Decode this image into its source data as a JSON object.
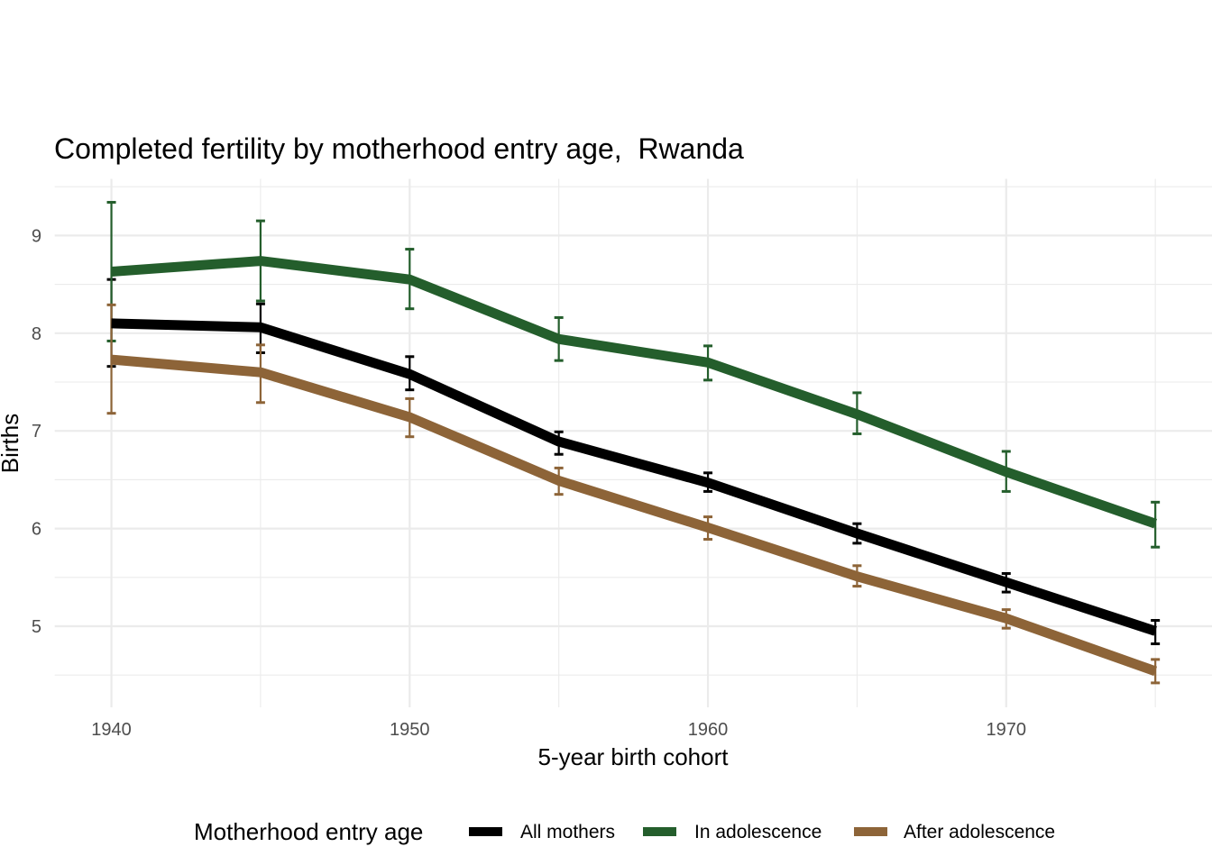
{
  "chart_data": {
    "type": "line",
    "title": "Completed fertility by motherhood entry age,  Rwanda",
    "xlabel": "5-year birth cohort",
    "ylabel": "Births",
    "x": [
      1940,
      1945,
      1950,
      1955,
      1960,
      1965,
      1970,
      1975
    ],
    "x_ticks": [
      1940,
      1950,
      1960,
      1970
    ],
    "x_tick_labels": [
      "1940",
      "1950",
      "1960",
      "1970"
    ],
    "y_ticks": [
      5,
      6,
      7,
      8,
      9
    ],
    "y_tick_labels": [
      "5",
      "6",
      "7",
      "8",
      "9"
    ],
    "xlim": [
      1938.1,
      1976.9
    ],
    "ylim": [
      4.17,
      9.58
    ],
    "grid": true,
    "error_bars": true,
    "legend": {
      "title": "Motherhood entry age",
      "position": "bottom"
    },
    "series": [
      {
        "name": "All mothers",
        "color": "#000000",
        "values": [
          8.1,
          8.06,
          7.58,
          6.89,
          6.47,
          5.95,
          5.45,
          4.95
        ],
        "lower": [
          7.66,
          7.8,
          7.42,
          6.76,
          6.38,
          5.85,
          5.35,
          4.82
        ],
        "upper": [
          8.55,
          8.3,
          7.76,
          6.99,
          6.57,
          6.05,
          5.54,
          5.06
        ]
      },
      {
        "name": "In adolescence",
        "color": "#245e2c",
        "values": [
          8.63,
          8.74,
          8.55,
          7.94,
          7.7,
          7.17,
          6.58,
          6.05
        ],
        "lower": [
          7.92,
          8.33,
          8.25,
          7.72,
          7.52,
          6.97,
          6.38,
          5.81
        ],
        "upper": [
          9.34,
          9.15,
          8.86,
          8.16,
          7.87,
          7.39,
          6.79,
          6.27
        ]
      },
      {
        "name": "After adolescence",
        "color": "#8d6438",
        "values": [
          7.73,
          7.6,
          7.14,
          6.49,
          6.01,
          5.51,
          5.08,
          4.54
        ],
        "lower": [
          7.18,
          7.29,
          6.94,
          6.35,
          5.89,
          5.41,
          4.98,
          4.42
        ],
        "upper": [
          8.29,
          7.88,
          7.33,
          6.62,
          6.12,
          5.62,
          5.17,
          4.66
        ]
      }
    ]
  }
}
